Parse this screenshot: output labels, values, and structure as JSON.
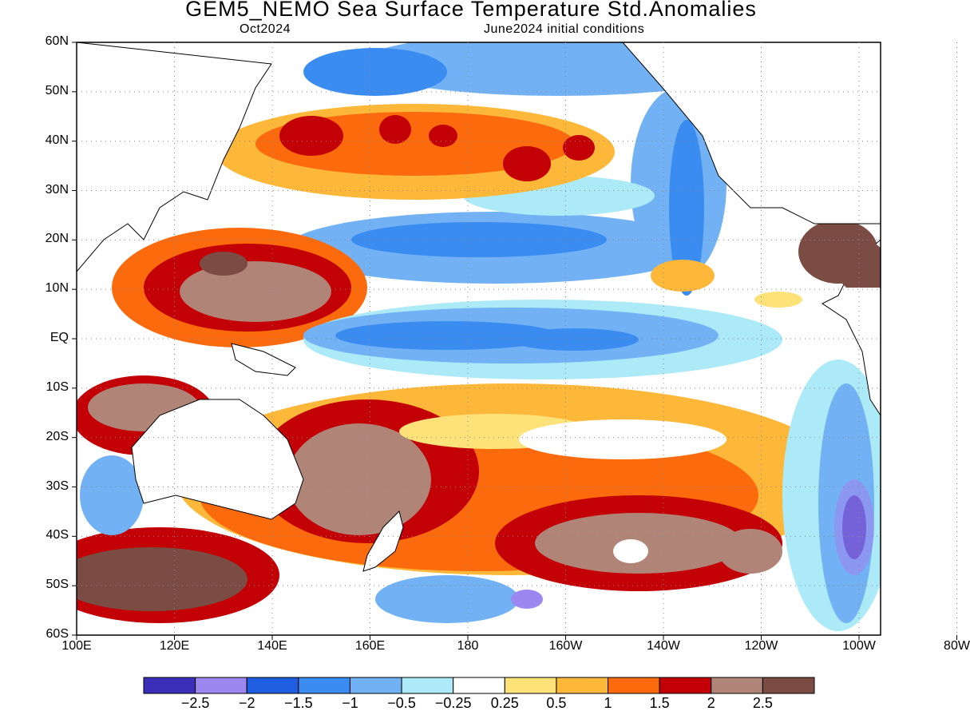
{
  "title": "GEM5_NEMO Sea Surface Temperature Std.Anomalies",
  "subtitle_left": "Oct2024",
  "subtitle_right": "June2024 initial conditions",
  "axes": {
    "lat_labels": [
      "60N",
      "50N",
      "40N",
      "30N",
      "20N",
      "10N",
      "EQ",
      "10S",
      "20S",
      "30S",
      "40S",
      "50S",
      "60S"
    ],
    "lon_labels": [
      "100E",
      "120E",
      "140E",
      "160E",
      "180",
      "160W",
      "140W",
      "120W",
      "100W",
      "80W"
    ],
    "grid": true
  },
  "colorbar": {
    "colors": [
      "#3a2fb8",
      "#9c86ef",
      "#1f5ee0",
      "#3a8cf0",
      "#72b2f4",
      "#adeaf7",
      "#ffffff",
      "#fde27a",
      "#fdb83a",
      "#fb6a0d",
      "#c20005",
      "#b08477",
      "#7a4c43"
    ],
    "labels": [
      "−2.5",
      "−2",
      "−1.5",
      "−1",
      "−0.5",
      "−0.25",
      "0.25",
      "0.5",
      "1",
      "1.5",
      "2",
      "2.5"
    ]
  }
}
